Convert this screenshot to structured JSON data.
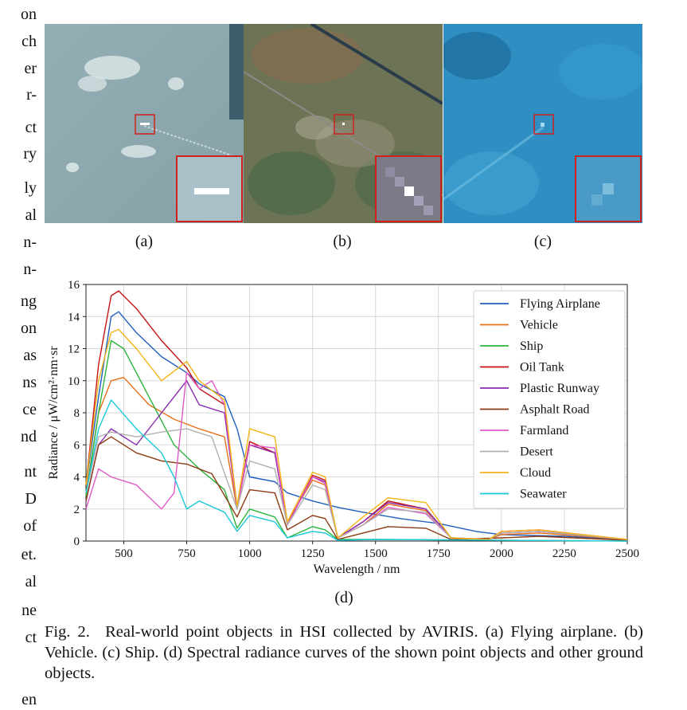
{
  "left_column_fragments": [
    "on",
    "ch",
    "er",
    "r-",
    "ct",
    "ry",
    "ly",
    "al",
    "n-",
    "n-",
    "ng",
    "on",
    "as",
    "ns",
    "ce",
    "nd",
    "nt",
    "D",
    "of",
    "et.",
    "al",
    "ne",
    "ct",
    "",
    "en"
  ],
  "panels": [
    {
      "label": "(a)",
      "bg": "#8fa8ad"
    },
    {
      "label": "(b)",
      "bg": "#6d7355"
    },
    {
      "label": "(c)",
      "bg": "#2f8fc2"
    }
  ],
  "highlight_color": "#d0211c",
  "chart_data": {
    "type": "line",
    "xlabel": "Wavelength / nm",
    "ylabel": "Radiance / μW/cm²·nm·sr",
    "xlim": [
      350,
      2500
    ],
    "ylim": [
      0,
      16
    ],
    "xticks": [
      500,
      750,
      1000,
      1250,
      1500,
      1750,
      2000,
      2250,
      2500
    ],
    "yticks": [
      0,
      2,
      4,
      6,
      8,
      10,
      12,
      14,
      16
    ],
    "grid": true,
    "legend_position": "top-right",
    "series": [
      {
        "name": "Flying Airplane",
        "color": "#1f5fbf",
        "points": [
          [
            350,
            3.5
          ],
          [
            400,
            9
          ],
          [
            450,
            14
          ],
          [
            480,
            14.3
          ],
          [
            550,
            13
          ],
          [
            650,
            11.5
          ],
          [
            750,
            10.5
          ],
          [
            800,
            9.8
          ],
          [
            900,
            9
          ],
          [
            950,
            7
          ],
          [
            1000,
            4
          ],
          [
            1100,
            3.7
          ],
          [
            1150,
            3
          ],
          [
            1250,
            2.5
          ],
          [
            1350,
            2.1
          ],
          [
            1450,
            1.8
          ],
          [
            1600,
            1.4
          ],
          [
            1750,
            1.1
          ],
          [
            1900,
            0.6
          ],
          [
            2000,
            0.4
          ],
          [
            2250,
            0.3
          ],
          [
            2500,
            0.1
          ]
        ]
      },
      {
        "name": "Vehicle",
        "color": "#e8701a",
        "points": [
          [
            350,
            3
          ],
          [
            400,
            8
          ],
          [
            450,
            10
          ],
          [
            500,
            10.2
          ],
          [
            600,
            8.5
          ],
          [
            700,
            7.6
          ],
          [
            800,
            7
          ],
          [
            900,
            6.5
          ],
          [
            950,
            2
          ],
          [
            1000,
            6
          ],
          [
            1100,
            5.5
          ],
          [
            1150,
            1.2
          ],
          [
            1250,
            3.8
          ],
          [
            1300,
            3.5
          ],
          [
            1350,
            0.2
          ],
          [
            1450,
            1
          ],
          [
            1550,
            2.3
          ],
          [
            1700,
            1.9
          ],
          [
            1800,
            0.2
          ],
          [
            1950,
            0.1
          ],
          [
            2000,
            0.4
          ],
          [
            2150,
            0.5
          ],
          [
            2500,
            0.1
          ]
        ]
      },
      {
        "name": "Ship",
        "color": "#2cb43c",
        "points": [
          [
            350,
            2.8
          ],
          [
            400,
            8
          ],
          [
            450,
            12.5
          ],
          [
            500,
            12
          ],
          [
            600,
            9
          ],
          [
            700,
            6
          ],
          [
            800,
            4.5
          ],
          [
            900,
            3.2
          ],
          [
            950,
            0.8
          ],
          [
            1000,
            2
          ],
          [
            1100,
            1.5
          ],
          [
            1150,
            0.2
          ],
          [
            1250,
            0.9
          ],
          [
            1300,
            0.7
          ],
          [
            1350,
            0.1
          ],
          [
            1500,
            0.1
          ],
          [
            2500,
            0
          ]
        ]
      },
      {
        "name": "Oil Tank",
        "color": "#c41414",
        "points": [
          [
            350,
            3.5
          ],
          [
            400,
            11
          ],
          [
            450,
            15.3
          ],
          [
            480,
            15.6
          ],
          [
            550,
            14.5
          ],
          [
            650,
            12.5
          ],
          [
            750,
            10.8
          ],
          [
            800,
            9.5
          ],
          [
            900,
            8.5
          ],
          [
            950,
            2
          ],
          [
            1000,
            6.2
          ],
          [
            1100,
            5.5
          ],
          [
            1150,
            1
          ],
          [
            1250,
            4.1
          ],
          [
            1300,
            3.8
          ],
          [
            1350,
            0.2
          ],
          [
            1450,
            1.2
          ],
          [
            1550,
            2.5
          ],
          [
            1700,
            2
          ],
          [
            1800,
            0.2
          ],
          [
            1950,
            0.1
          ],
          [
            2000,
            0.6
          ],
          [
            2150,
            0.7
          ],
          [
            2500,
            0.1
          ]
        ]
      },
      {
        "name": "Plastic Runway",
        "color": "#8a2bb0",
        "points": [
          [
            350,
            2.5
          ],
          [
            400,
            6
          ],
          [
            450,
            7
          ],
          [
            550,
            6
          ],
          [
            650,
            8
          ],
          [
            700,
            9
          ],
          [
            750,
            10
          ],
          [
            800,
            8.5
          ],
          [
            900,
            8
          ],
          [
            950,
            2
          ],
          [
            1000,
            6
          ],
          [
            1100,
            5.5
          ],
          [
            1150,
            1
          ],
          [
            1250,
            4
          ],
          [
            1300,
            3.7
          ],
          [
            1350,
            0.2
          ],
          [
            1450,
            1.2
          ],
          [
            1550,
            2.4
          ],
          [
            1700,
            2
          ],
          [
            1800,
            0.2
          ],
          [
            1950,
            0.1
          ],
          [
            2000,
            0.5
          ],
          [
            2150,
            0.6
          ],
          [
            2500,
            0.1
          ]
        ]
      },
      {
        "name": "Asphalt Road",
        "color": "#8b3a12",
        "points": [
          [
            350,
            2.5
          ],
          [
            400,
            6
          ],
          [
            450,
            6.5
          ],
          [
            550,
            5.5
          ],
          [
            650,
            5
          ],
          [
            750,
            4.8
          ],
          [
            850,
            4.2
          ],
          [
            950,
            1.5
          ],
          [
            1000,
            3.2
          ],
          [
            1100,
            3
          ],
          [
            1150,
            0.7
          ],
          [
            1250,
            1.6
          ],
          [
            1300,
            1.4
          ],
          [
            1350,
            0.1
          ],
          [
            1450,
            0.5
          ],
          [
            1550,
            0.9
          ],
          [
            1700,
            0.8
          ],
          [
            1800,
            0.1
          ],
          [
            2000,
            0.2
          ],
          [
            2150,
            0.3
          ],
          [
            2500,
            0.05
          ]
        ]
      },
      {
        "name": "Farmland",
        "color": "#e058c8",
        "points": [
          [
            350,
            2
          ],
          [
            400,
            4.5
          ],
          [
            450,
            4
          ],
          [
            550,
            3.5
          ],
          [
            650,
            2
          ],
          [
            700,
            3
          ],
          [
            750,
            10.5
          ],
          [
            800,
            9.5
          ],
          [
            850,
            10
          ],
          [
            900,
            8.5
          ],
          [
            950,
            2
          ],
          [
            1000,
            6
          ],
          [
            1100,
            5.8
          ],
          [
            1150,
            1
          ],
          [
            1250,
            4
          ],
          [
            1300,
            3.6
          ],
          [
            1350,
            0.2
          ],
          [
            1450,
            1
          ],
          [
            1550,
            2.1
          ],
          [
            1700,
            1.7
          ],
          [
            1800,
            0.2
          ],
          [
            1950,
            0.1
          ],
          [
            2000,
            0.5
          ],
          [
            2150,
            0.6
          ],
          [
            2500,
            0.1
          ]
        ]
      },
      {
        "name": "Desert",
        "color": "#b0b0b0",
        "points": [
          [
            350,
            3
          ],
          [
            400,
            6.5
          ],
          [
            450,
            6.8
          ],
          [
            550,
            6.5
          ],
          [
            650,
            6.8
          ],
          [
            750,
            7
          ],
          [
            850,
            6.5
          ],
          [
            950,
            2
          ],
          [
            1000,
            5
          ],
          [
            1100,
            4.5
          ],
          [
            1150,
            1
          ],
          [
            1250,
            3.5
          ],
          [
            1300,
            3.2
          ],
          [
            1350,
            0.2
          ],
          [
            1450,
            1
          ],
          [
            1550,
            2
          ],
          [
            1700,
            1.8
          ],
          [
            1800,
            0.2
          ],
          [
            1950,
            0.1
          ],
          [
            2000,
            0.5
          ],
          [
            2150,
            0.6
          ],
          [
            2500,
            0.1
          ]
        ]
      },
      {
        "name": "Cloud",
        "color": "#f2b417",
        "points": [
          [
            350,
            3.5
          ],
          [
            400,
            10
          ],
          [
            450,
            13
          ],
          [
            480,
            13.2
          ],
          [
            550,
            12
          ],
          [
            650,
            10
          ],
          [
            750,
            11.2
          ],
          [
            800,
            10
          ],
          [
            900,
            8.8
          ],
          [
            950,
            2.2
          ],
          [
            1000,
            7
          ],
          [
            1100,
            6.5
          ],
          [
            1150,
            1.2
          ],
          [
            1250,
            4.3
          ],
          [
            1300,
            4
          ],
          [
            1350,
            0.2
          ],
          [
            1450,
            1.5
          ],
          [
            1550,
            2.7
          ],
          [
            1700,
            2.4
          ],
          [
            1800,
            0.2
          ],
          [
            1950,
            0.1
          ],
          [
            2000,
            0.6
          ],
          [
            2150,
            0.7
          ],
          [
            2500,
            0.1
          ]
        ]
      },
      {
        "name": "Seawater",
        "color": "#19c8d8",
        "points": [
          [
            350,
            3
          ],
          [
            400,
            7
          ],
          [
            450,
            8.8
          ],
          [
            550,
            7
          ],
          [
            650,
            5.5
          ],
          [
            700,
            4
          ],
          [
            750,
            2
          ],
          [
            800,
            2.5
          ],
          [
            900,
            1.8
          ],
          [
            950,
            0.6
          ],
          [
            1000,
            1.6
          ],
          [
            1100,
            1.2
          ],
          [
            1150,
            0.2
          ],
          [
            1250,
            0.6
          ],
          [
            1300,
            0.5
          ],
          [
            1350,
            0.05
          ],
          [
            1500,
            0.1
          ],
          [
            2500,
            0
          ]
        ]
      }
    ]
  },
  "chart_label": "(d)",
  "caption": "Fig. 2.  Real-world point objects in HSI collected by AVIRIS. (a) Flying airplane. (b) Vehicle. (c) Ship. (d) Spectral radiance curves of the shown point objects and other ground objects."
}
